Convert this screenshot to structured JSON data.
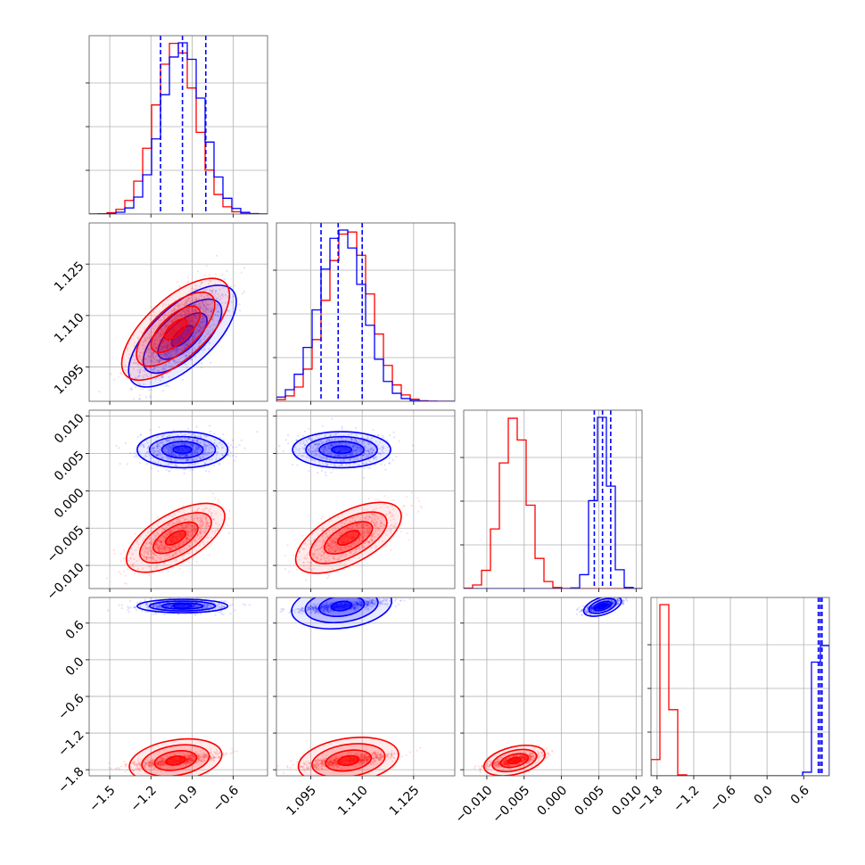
{
  "chart_data": {
    "type": "corner",
    "title": "",
    "grid": true,
    "colors": {
      "series_a": "#0000ff",
      "series_b": "#ff0000",
      "grid": "#b0b0b0",
      "frame": "#555555"
    },
    "series": [
      {
        "color": "#0000ff",
        "color_name": "blue",
        "mean": [
          -0.97,
          1.104,
          0.0055,
          0.88
        ],
        "sd": [
          0.15,
          0.0065,
          0.0011,
          0.05
        ],
        "quantiles": {
          "p0": [
            -1.13,
            1.098,
            0.0044,
            0.84
          ],
          "p1": [
            -0.97,
            1.103,
            0.0055,
            0.87
          ],
          "p2": [
            -0.8,
            1.11,
            0.0066,
            0.9
          ]
        }
      },
      {
        "color": "#ff0000",
        "color_name": "red",
        "mean": [
          -1.02,
          1.106,
          -0.0063,
          -1.65
        ],
        "sd": [
          0.15,
          0.0065,
          0.0018,
          0.06
        ]
      }
    ],
    "correlation": {
      "blue": [
        [
          0,
          1
        ],
        [
          2,
          3
        ],
        [
          1,
          3
        ]
      ],
      "red": [
        [
          0,
          1
        ],
        [
          0,
          2
        ],
        [
          1,
          2
        ],
        [
          0,
          3
        ],
        [
          1,
          3
        ],
        [
          2,
          3
        ]
      ]
    },
    "parameters": [
      {
        "range": [
          -1.65,
          -0.35
        ],
        "ticks": [
          -1.5,
          -1.2,
          -0.9,
          -0.6
        ],
        "tick_labels": [
          "−1.5",
          "−1.2",
          "−0.9",
          "−0.6"
        ]
      },
      {
        "range": [
          1.085,
          1.137
        ],
        "ticks": [
          1.095,
          1.11,
          1.125
        ],
        "tick_labels": [
          "1.095",
          "1.110",
          "1.125"
        ]
      },
      {
        "range": [
          -0.0131,
          0.0108
        ],
        "ticks": [
          -0.01,
          -0.005,
          0.0,
          0.005,
          0.01
        ],
        "tick_labels": [
          "−0.010",
          "−0.005",
          "0.000",
          "0.005",
          "0.010"
        ]
      },
      {
        "range": [
          -1.9,
          1.02
        ],
        "ticks": [
          -1.8,
          -1.2,
          -0.6,
          0.0,
          0.6
        ],
        "tick_labels": [
          "−1.8",
          "−1.2",
          "−0.6",
          "0.0",
          "0.6"
        ]
      }
    ]
  }
}
